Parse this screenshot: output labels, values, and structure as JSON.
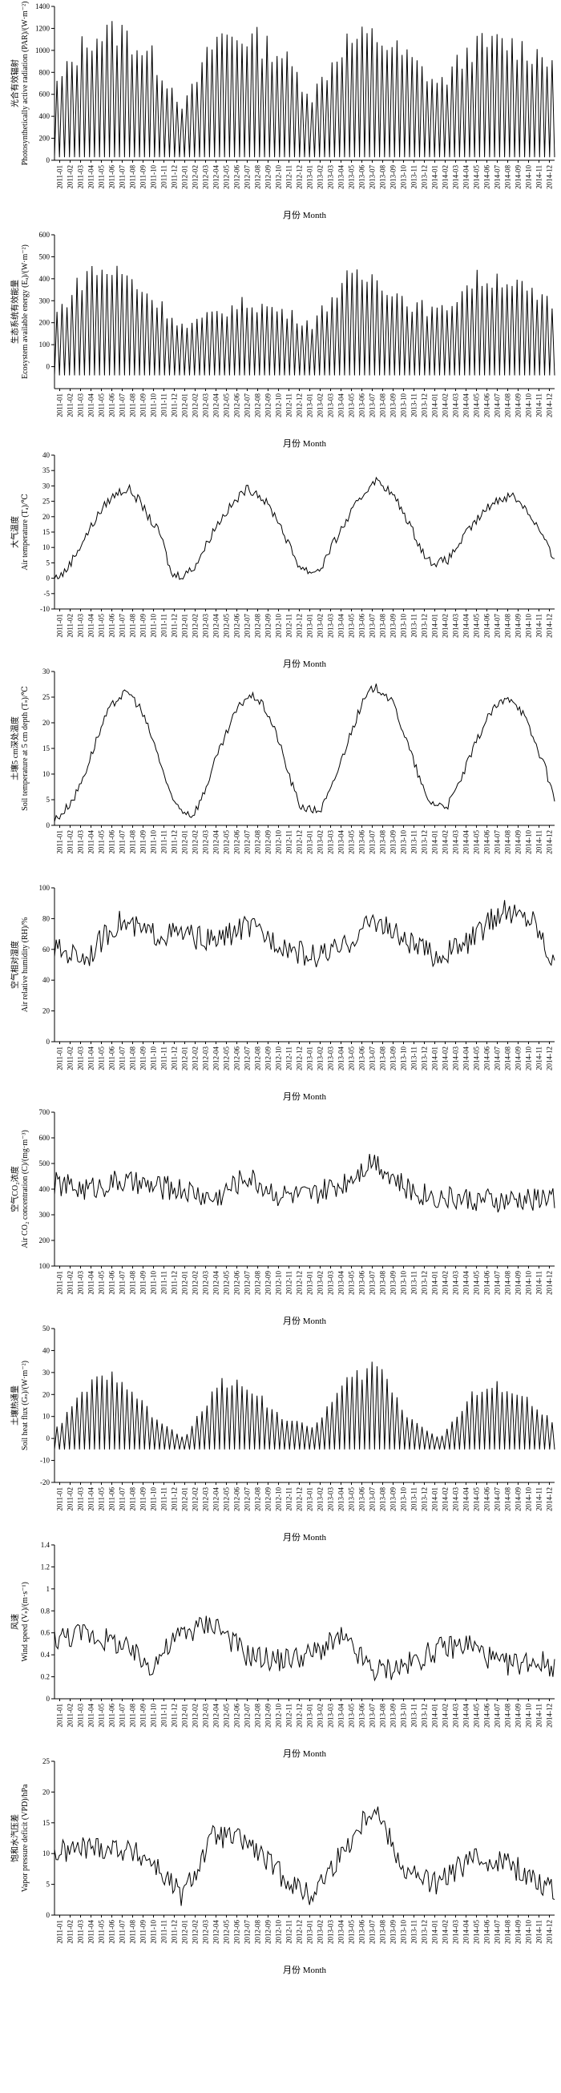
{
  "x_ticks": [
    "2011-01",
    "2011-02",
    "2011-03",
    "2011-04",
    "2011-05",
    "2011-06",
    "2011-07",
    "2011-08",
    "2011-09",
    "2011-10",
    "2011-11",
    "2011-12",
    "2012-01",
    "2012-02",
    "2012-03",
    "2012-04",
    "2012-05",
    "2012-06",
    "2012-07",
    "2012-08",
    "2012-09",
    "2012-10",
    "2012-11",
    "2012-12",
    "2013-01",
    "2013-02",
    "2013-03",
    "2013-04",
    "2013-05",
    "2013-06",
    "2013-07",
    "2013-08",
    "2013-09",
    "2013-10",
    "2013-11",
    "2013-12",
    "2014-01",
    "2014-02",
    "2014-03",
    "2014-04",
    "2014-05",
    "2014-06",
    "2014-07",
    "2014-08",
    "2014-09",
    "2014-10",
    "2014-11",
    "2014-12"
  ],
  "chart_data": [
    {
      "type": "line",
      "ylabel_cn": "光合有效辐射",
      "ylabel_en": "Photosynthetically active radiation (PAR)/(W·m⁻²)",
      "xlabel": "月份 Month",
      "ylim": [
        0,
        1400
      ],
      "yticks": [
        0,
        200,
        400,
        600,
        800,
        1000,
        1200,
        1400
      ],
      "pattern": "spikes",
      "series": [
        {
          "x": [
            "2011-01",
            "2011-04",
            "2011-07",
            "2011-10",
            "2012-01",
            "2012-04",
            "2012-07",
            "2012-10",
            "2013-01",
            "2013-04",
            "2013-07",
            "2013-10",
            "2014-01",
            "2014-04",
            "2014-07",
            "2014-10",
            "2014-12"
          ],
          "y": [
            700,
            1150,
            1200,
            950,
            500,
            1150,
            1150,
            1000,
            600,
            1100,
            1150,
            950,
            700,
            1050,
            1100,
            1000,
            950
          ]
        }
      ]
    },
    {
      "type": "line",
      "ylabel_cn": "生态系统有效能量",
      "ylabel_en": "Ecosystem available energy (Eₐ)/(W·m⁻²)",
      "xlabel": "月份 Month",
      "ylim": [
        -100,
        600
      ],
      "yticks": [
        0,
        100,
        200,
        300,
        400,
        500,
        600
      ],
      "pattern": "spikes",
      "baseline": -40,
      "series": [
        {
          "x": [
            "2011-01",
            "2011-04",
            "2011-07",
            "2011-10",
            "2012-01",
            "2012-04",
            "2012-07",
            "2012-10",
            "2013-01",
            "2013-04",
            "2013-07",
            "2013-10",
            "2014-01",
            "2014-04",
            "2014-07",
            "2014-10",
            "2014-12"
          ],
          "y": [
            250,
            450,
            440,
            320,
            180,
            250,
            300,
            260,
            200,
            400,
            420,
            300,
            250,
            400,
            420,
            320,
            280
          ]
        }
      ]
    },
    {
      "type": "line",
      "ylabel_cn": "大气温度",
      "ylabel_en": "Air temperature (Tₐ)/℃",
      "xlabel": "月份 Month",
      "ylim": [
        -10,
        40
      ],
      "yticks": [
        -10,
        -5,
        0,
        5,
        10,
        15,
        20,
        25,
        30,
        35,
        40
      ],
      "pattern": "smooth",
      "series": [
        {
          "x": [
            "2011-01",
            "2011-02",
            "2011-03",
            "2011-04",
            "2011-05",
            "2011-06",
            "2011-07",
            "2011-08",
            "2011-09",
            "2011-10",
            "2011-11",
            "2011-12",
            "2012-01",
            "2012-02",
            "2012-03",
            "2012-04",
            "2012-05",
            "2012-06",
            "2012-07",
            "2012-08",
            "2012-09",
            "2012-10",
            "2012-11",
            "2012-12",
            "2013-01",
            "2013-02",
            "2013-03",
            "2013-04",
            "2013-05",
            "2013-06",
            "2013-07",
            "2013-08",
            "2013-09",
            "2013-10",
            "2013-11",
            "2013-12",
            "2014-01",
            "2014-02",
            "2014-03",
            "2014-04",
            "2014-05",
            "2014-06",
            "2014-07",
            "2014-08",
            "2014-09",
            "2014-10",
            "2014-11",
            "2014-12"
          ],
          "y": [
            0,
            2,
            8,
            14,
            20,
            25,
            28,
            29,
            25,
            19,
            14,
            1,
            1,
            3,
            9,
            16,
            21,
            25,
            29,
            28,
            24,
            19,
            11,
            4,
            2,
            3,
            10,
            16,
            22,
            27,
            32,
            30,
            26,
            20,
            13,
            6,
            5,
            6,
            11,
            16,
            20,
            24,
            26,
            27,
            24,
            19,
            13,
            5
          ]
        }
      ]
    },
    {
      "type": "line",
      "ylabel_cn": "土壤5 cm深处温度",
      "ylabel_en": "Soil temperature at 5 cm depth (Tₛ)/℃",
      "xlabel": "",
      "ylim": [
        0,
        30
      ],
      "yticks": [
        0,
        5,
        10,
        15,
        20,
        25,
        30
      ],
      "pattern": "smooth",
      "series": [
        {
          "x": [
            "2011-01",
            "2011-02",
            "2011-03",
            "2011-04",
            "2011-05",
            "2011-06",
            "2011-07",
            "2011-08",
            "2011-09",
            "2011-10",
            "2011-11",
            "2011-12",
            "2012-01",
            "2012-02",
            "2012-03",
            "2012-04",
            "2012-05",
            "2012-06",
            "2012-07",
            "2012-08",
            "2012-09",
            "2012-10",
            "2012-11",
            "2012-12",
            "2013-01",
            "2013-02",
            "2013-03",
            "2013-04",
            "2013-05",
            "2013-06",
            "2013-07",
            "2013-08",
            "2013-09",
            "2013-10",
            "2013-11",
            "2013-12",
            "2014-01",
            "2014-02",
            "2014-03",
            "2014-04",
            "2014-05",
            "2014-06",
            "2014-07",
            "2014-08",
            "2014-09",
            "2014-10",
            "2014-11",
            "2014-12"
          ],
          "y": [
            1,
            3,
            6,
            11,
            17,
            22,
            25,
            26,
            23,
            18,
            12,
            5,
            3,
            2,
            6,
            12,
            17,
            22,
            25,
            25,
            22,
            17,
            10,
            4,
            3,
            3,
            7,
            13,
            19,
            24,
            27,
            26,
            23,
            17,
            11,
            5,
            4,
            4,
            8,
            13,
            18,
            22,
            24,
            25,
            22,
            17,
            12,
            5
          ]
        }
      ]
    },
    {
      "type": "line",
      "ylabel_cn": "空气相对湿度",
      "ylabel_en": "Air relative humidity (RH)/%",
      "xlabel": "月份 Month",
      "ylim": [
        0,
        100
      ],
      "yticks": [
        0,
        20,
        40,
        60,
        80,
        100
      ],
      "pattern": "noisy",
      "series": [
        {
          "x": [
            "2011-01",
            "2011-04",
            "2011-07",
            "2011-10",
            "2012-01",
            "2012-04",
            "2012-07",
            "2012-10",
            "2013-01",
            "2013-04",
            "2013-07",
            "2013-10",
            "2014-01",
            "2014-04",
            "2014-07",
            "2014-10",
            "2014-12"
          ],
          "y": [
            60,
            55,
            78,
            70,
            70,
            65,
            75,
            65,
            55,
            60,
            80,
            65,
            55,
            65,
            85,
            80,
            50
          ]
        }
      ]
    },
    {
      "type": "line",
      "ylabel_cn": "空气CO₂浓度",
      "ylabel_en": "Air CO₂ concentration (C)/(mg·m⁻³)",
      "xlabel": "月份 Month",
      "ylim": [
        100,
        700
      ],
      "yticks": [
        100,
        200,
        300,
        400,
        500,
        600,
        700
      ],
      "pattern": "noisy",
      "series": [
        {
          "x": [
            "2011-01",
            "2011-04",
            "2011-07",
            "2011-10",
            "2012-01",
            "2012-04",
            "2012-07",
            "2012-10",
            "2013-01",
            "2013-04",
            "2013-07",
            "2013-10",
            "2014-01",
            "2014-04",
            "2014-07",
            "2014-10",
            "2014-12"
          ],
          "y": [
            420,
            400,
            430,
            410,
            400,
            360,
            450,
            380,
            370,
            420,
            520,
            400,
            370,
            360,
            350,
            360,
            370
          ]
        }
      ]
    },
    {
      "type": "line",
      "ylabel_cn": "土壤热通量",
      "ylabel_en": "Soil heat flux (Gₛ)/(W·m⁻²)",
      "xlabel": "月份 Month",
      "ylim": [
        -20,
        50
      ],
      "yticks": [
        -20,
        -10,
        0,
        10,
        20,
        30,
        40,
        50
      ],
      "pattern": "spikes",
      "baseline": -5,
      "series": [
        {
          "x": [
            "2011-01",
            "2011-04",
            "2011-07",
            "2011-10",
            "2012-01",
            "2012-04",
            "2012-07",
            "2012-10",
            "2013-01",
            "2013-04",
            "2013-07",
            "2013-10",
            "2014-01",
            "2014-04",
            "2014-07",
            "2014-10",
            "2014-12"
          ],
          "y": [
            5,
            25,
            30,
            10,
            0,
            25,
            25,
            10,
            5,
            25,
            35,
            10,
            0,
            20,
            25,
            15,
            5
          ]
        }
      ]
    },
    {
      "type": "line",
      "ylabel_cn": "风速",
      "ylabel_en": "Wind speed (Vₛ)/(m·s⁻¹)",
      "xlabel": "月份 Month",
      "ylim": [
        0,
        1.4
      ],
      "yticks": [
        0,
        0.2,
        0.4,
        0.6,
        0.8,
        1.0,
        1.2,
        1.4
      ],
      "pattern": "noisy",
      "series": [
        {
          "x": [
            "2011-01",
            "2011-04",
            "2011-07",
            "2011-10",
            "2012-01",
            "2012-04",
            "2012-07",
            "2012-10",
            "2013-01",
            "2013-04",
            "2013-07",
            "2013-10",
            "2014-01",
            "2014-04",
            "2014-07",
            "2014-10",
            "2014-12"
          ],
          "y": [
            0.55,
            0.6,
            0.5,
            0.3,
            0.6,
            0.7,
            0.4,
            0.35,
            0.4,
            0.55,
            0.25,
            0.3,
            0.45,
            0.5,
            0.3,
            0.35,
            0.3
          ]
        }
      ]
    },
    {
      "type": "line",
      "ylabel_cn": "饱和水汽压差",
      "ylabel_en": "Vapor pressure deficit (VPD)/hPa",
      "xlabel": "月份 Month",
      "ylim": [
        0,
        25
      ],
      "yticks": [
        0,
        5,
        10,
        15,
        20,
        25
      ],
      "pattern": "noisy",
      "series": [
        {
          "x": [
            "2011-01",
            "2011-04",
            "2011-07",
            "2011-10",
            "2012-01",
            "2012-04",
            "2012-07",
            "2012-10",
            "2013-01",
            "2013-04",
            "2013-07",
            "2013-10",
            "2014-01",
            "2014-04",
            "2014-07",
            "2014-10",
            "2014-12"
          ],
          "y": [
            10,
            11,
            11,
            9,
            3,
            13,
            12,
            7,
            3,
            10,
            18,
            7,
            5,
            9,
            9,
            6,
            4
          ]
        }
      ]
    }
  ]
}
